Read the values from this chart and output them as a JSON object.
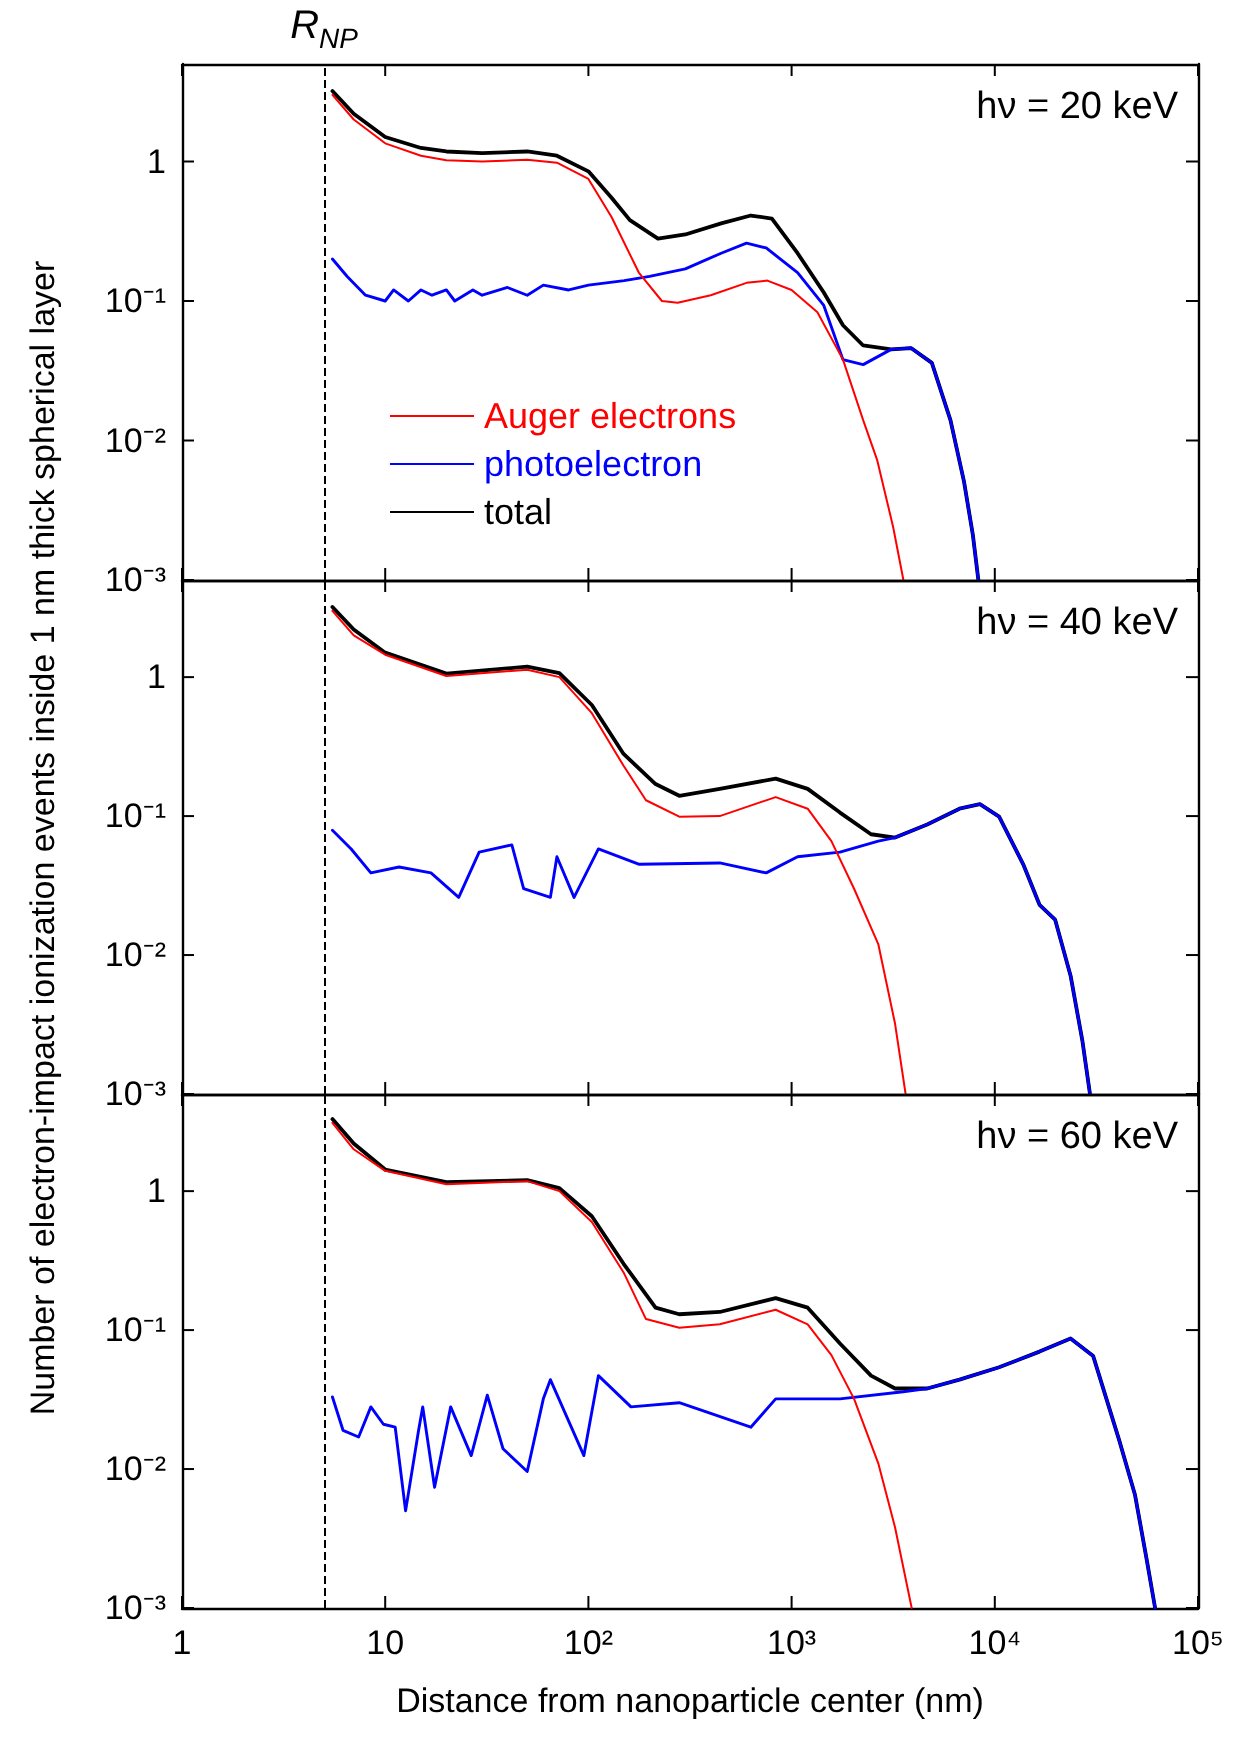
{
  "chart_data": [
    {
      "type": "line",
      "log": "xy",
      "xlim": [
        1,
        100000
      ],
      "ylim": [
        0.001,
        5
      ],
      "yticks": [
        {
          "value": 0.001,
          "label": "10⁻³"
        },
        {
          "value": 0.01,
          "label": "10⁻²"
        },
        {
          "value": 0.1,
          "label": "10⁻¹"
        },
        {
          "value": 1,
          "label": "1"
        }
      ],
      "tick_labels": "y",
      "legend": "bottom left",
      "annotations": [
        "hν = 20 keV"
      ],
      "ref_lines": [
        {
          "axis": "x",
          "value": 5,
          "label": "R$_{NP}$",
          "color": "#000000",
          "line_style": "dashed"
        }
      ],
      "series": [
        {
          "name": "Auger electrons",
          "color": "#ff0000",
          "x": [
            5.5,
            7,
            10,
            15,
            20,
            30,
            50,
            70,
            100,
            130,
            177,
            230,
            275,
            400,
            600,
            760,
            1000,
            1340,
            1790,
            2250,
            2640,
            3160,
            3550
          ],
          "values": [
            3.0,
            2.0,
            1.35,
            1.1,
            1.02,
            1.0,
            1.03,
            0.98,
            0.75,
            0.4,
            0.16,
            0.1,
            0.097,
            0.11,
            0.135,
            0.14,
            0.12,
            0.083,
            0.038,
            0.014,
            0.0072,
            0.0024,
            0.001
          ]
        },
        {
          "name": "photoelectron",
          "color": "#0000ff",
          "x": [
            5.5,
            6.5,
            8,
            10,
            11,
            13,
            15,
            17,
            20,
            22,
            27,
            30,
            40,
            50,
            60,
            80,
            100,
            150,
            200,
            300,
            450,
            600,
            750,
            1070,
            1440,
            1790,
            2250,
            3090,
            3870,
            4900,
            6050,
            7050,
            7800,
            8300
          ],
          "values": [
            0.2,
            0.15,
            0.11,
            0.1,
            0.12,
            0.1,
            0.12,
            0.11,
            0.12,
            0.1,
            0.12,
            0.11,
            0.125,
            0.11,
            0.13,
            0.12,
            0.13,
            0.14,
            0.15,
            0.17,
            0.22,
            0.26,
            0.24,
            0.16,
            0.093,
            0.038,
            0.035,
            0.045,
            0.046,
            0.036,
            0.014,
            0.0051,
            0.0021,
            0.001
          ]
        },
        {
          "name": "total",
          "color": "#000000",
          "x": [
            5.5,
            7,
            10,
            15,
            20,
            30,
            50,
            70,
            100,
            130,
            160,
            220,
            300,
            450,
            630,
            800,
            1070,
            1440,
            1790,
            2250,
            3090,
            3870,
            4900,
            6050,
            7050,
            7800,
            8300
          ],
          "values": [
            3.2,
            2.2,
            1.5,
            1.25,
            1.18,
            1.15,
            1.18,
            1.1,
            0.85,
            0.55,
            0.38,
            0.28,
            0.3,
            0.36,
            0.41,
            0.39,
            0.22,
            0.115,
            0.067,
            0.048,
            0.045,
            0.046,
            0.036,
            0.014,
            0.0051,
            0.0021,
            0.001
          ]
        }
      ]
    },
    {
      "type": "line",
      "log": "xy",
      "xlim": [
        1,
        100000
      ],
      "ylim": [
        0.001,
        5
      ],
      "yticks": [
        {
          "value": 0.001,
          "label": "10⁻³"
        },
        {
          "value": 0.01,
          "label": "10⁻²"
        },
        {
          "value": 0.1,
          "label": "10⁻¹"
        },
        {
          "value": 1,
          "label": "1"
        }
      ],
      "tick_labels": "y",
      "annotations": [
        "hν = 40 keV"
      ],
      "ylabel": "Number of electron-impact ionization events inside 1 nm thick spherical layer",
      "ref_lines": [
        {
          "axis": "x",
          "value": 5,
          "color": "#000000",
          "line_style": "dashed"
        }
      ],
      "series": [
        {
          "color": "#ff0000",
          "x": [
            5.5,
            7,
            10,
            20,
            50,
            72,
            104,
            149,
            192,
            280,
            443,
            835,
            1200,
            1570,
            2030,
            2670,
            3230,
            3640
          ],
          "values": [
            3.0,
            2.0,
            1.45,
            1.02,
            1.13,
            1.0,
            0.55,
            0.23,
            0.13,
            0.099,
            0.1,
            0.137,
            0.113,
            0.066,
            0.03,
            0.012,
            0.0032,
            0.001
          ]
        },
        {
          "color": "#0000ff",
          "x": [
            5.5,
            6.8,
            8.5,
            11.7,
            16.8,
            23,
            29,
            42,
            48,
            65,
            70,
            85,
            112,
            178,
            443,
            750,
            1070,
            1730,
            2670,
            3230,
            4650,
            6700,
            8450,
            10500,
            13800,
            16600,
            19800,
            23600,
            27000,
            29400
          ],
          "values": [
            0.079,
            0.058,
            0.039,
            0.043,
            0.039,
            0.026,
            0.055,
            0.062,
            0.03,
            0.026,
            0.051,
            0.026,
            0.058,
            0.045,
            0.046,
            0.039,
            0.051,
            0.055,
            0.066,
            0.07,
            0.087,
            0.113,
            0.122,
            0.099,
            0.045,
            0.023,
            0.018,
            0.0071,
            0.0024,
            0.001
          ]
        },
        {
          "color": "#000000",
          "x": [
            5.5,
            7,
            10,
            20,
            50,
            72,
            104,
            149,
            214,
            280,
            443,
            835,
            1200,
            1730,
            2460,
            3230,
            4650,
            6700,
            8450,
            10500,
            13800,
            16600,
            19800,
            23600,
            27000,
            29400
          ],
          "values": [
            3.2,
            2.2,
            1.5,
            1.06,
            1.19,
            1.07,
            0.63,
            0.28,
            0.17,
            0.14,
            0.157,
            0.186,
            0.157,
            0.106,
            0.074,
            0.07,
            0.087,
            0.113,
            0.122,
            0.099,
            0.045,
            0.023,
            0.018,
            0.0071,
            0.0024,
            0.001
          ]
        }
      ]
    },
    {
      "type": "line",
      "log": "xy",
      "xlim": [
        1,
        100000
      ],
      "ylim": [
        0.001,
        5
      ],
      "xticks": [
        1,
        10,
        {
          "value": 100,
          "label": "10²"
        },
        {
          "value": 1000,
          "label": "10³"
        },
        {
          "value": 10000,
          "label": "10⁴"
        },
        {
          "value": 100000,
          "label": "10⁵"
        }
      ],
      "yticks": [
        {
          "value": 0.001,
          "label": "10⁻³"
        },
        {
          "value": 0.01,
          "label": "10⁻²"
        },
        {
          "value": 0.1,
          "label": "10⁻¹"
        },
        {
          "value": 1,
          "label": "1"
        }
      ],
      "xlabel": "Distance from nanoparticle center (nm)",
      "annotations": [
        "hν = 60 keV"
      ],
      "ref_lines": [
        {
          "axis": "x",
          "value": 5,
          "color": "#000000",
          "line_style": "dashed"
        }
      ],
      "series": [
        {
          "color": "#ff0000",
          "x": [
            5.5,
            7,
            10,
            20,
            50,
            72,
            104,
            149,
            192,
            280,
            443,
            835,
            1200,
            1570,
            2030,
            2670,
            3230,
            3900
          ],
          "values": [
            3.1,
            2.0,
            1.4,
            1.12,
            1.18,
            1.0,
            0.6,
            0.26,
            0.12,
            0.104,
            0.11,
            0.14,
            0.11,
            0.066,
            0.032,
            0.011,
            0.0038,
            0.001
          ]
        },
        {
          "color": "#0000ff",
          "x": [
            5.5,
            6.2,
            7.4,
            8.5,
            9.8,
            11.2,
            12.6,
            14.6,
            15.3,
            17.5,
            21,
            26.5,
            31.8,
            38,
            50,
            60,
            65,
            95,
            112,
            162,
            280,
            630,
            835,
            1730,
            3540,
            4650,
            6700,
            10500,
            16600,
            23600,
            30500,
            41000,
            49000,
            56000,
            61500
          ],
          "values": [
            0.033,
            0.019,
            0.017,
            0.028,
            0.021,
            0.02,
            0.005,
            0.019,
            0.028,
            0.0074,
            0.028,
            0.0125,
            0.034,
            0.014,
            0.0096,
            0.032,
            0.044,
            0.0125,
            0.047,
            0.028,
            0.03,
            0.02,
            0.032,
            0.032,
            0.036,
            0.038,
            0.044,
            0.054,
            0.07,
            0.087,
            0.065,
            0.016,
            0.0065,
            0.0022,
            0.001
          ]
        },
        {
          "color": "#000000",
          "x": [
            5.5,
            7,
            10,
            20,
            50,
            72,
            104,
            149,
            214,
            280,
            443,
            835,
            1200,
            1730,
            2460,
            3230,
            4650,
            6700,
            10500,
            16600,
            23600,
            30500,
            41000,
            49000,
            56000,
            61500
          ],
          "values": [
            3.3,
            2.2,
            1.43,
            1.16,
            1.2,
            1.05,
            0.66,
            0.3,
            0.145,
            0.13,
            0.135,
            0.17,
            0.145,
            0.08,
            0.047,
            0.038,
            0.038,
            0.044,
            0.054,
            0.07,
            0.087,
            0.065,
            0.016,
            0.0065,
            0.0022,
            0.001
          ]
        }
      ]
    }
  ]
}
